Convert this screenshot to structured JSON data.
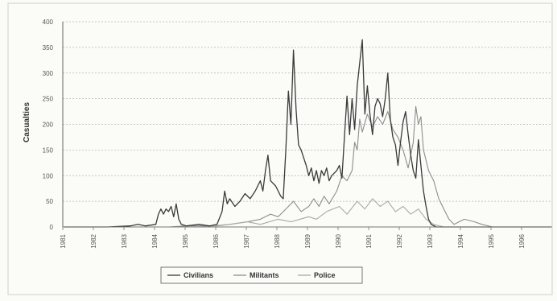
{
  "chart_data": {
    "type": "line",
    "title": "",
    "xlabel": "",
    "ylabel": "Casualties",
    "ylim": [
      0,
      400
    ],
    "y_ticks": [
      "0",
      "50",
      "100",
      "150",
      "200",
      "250",
      "300",
      "350",
      "400"
    ],
    "x_ticks": [
      "1981",
      "1982",
      "1983",
      "1984",
      "1985",
      "1986",
      "1987",
      "1988",
      "1989",
      "1990",
      "1991",
      "1992",
      "1993",
      "1994",
      "1995",
      "1996"
    ],
    "grid": "horizontal",
    "legend_placement": "bottom-center",
    "x_domain": [
      "1981-01",
      "1996-12"
    ],
    "series": [
      {
        "name": "Civilians",
        "color": "#3a3a3a",
        "points": [
          [
            "1981-01",
            0
          ],
          [
            "1982-06",
            0
          ],
          [
            "1983-03",
            2
          ],
          [
            "1983-06",
            5
          ],
          [
            "1983-09",
            2
          ],
          [
            "1984-01",
            5
          ],
          [
            "1984-02",
            25
          ],
          [
            "1984-03",
            35
          ],
          [
            "1984-04",
            25
          ],
          [
            "1984-05",
            35
          ],
          [
            "1984-06",
            30
          ],
          [
            "1984-07",
            40
          ],
          [
            "1984-08",
            20
          ],
          [
            "1984-09",
            45
          ],
          [
            "1984-10",
            15
          ],
          [
            "1984-11",
            5
          ],
          [
            "1985-01",
            2
          ],
          [
            "1985-06",
            5
          ],
          [
            "1985-10",
            2
          ],
          [
            "1986-01",
            5
          ],
          [
            "1986-03",
            30
          ],
          [
            "1986-04",
            70
          ],
          [
            "1986-05",
            45
          ],
          [
            "1986-06",
            55
          ],
          [
            "1986-08",
            40
          ],
          [
            "1986-10",
            50
          ],
          [
            "1986-12",
            65
          ],
          [
            "1987-02",
            55
          ],
          [
            "1987-04",
            70
          ],
          [
            "1987-06",
            90
          ],
          [
            "1987-07",
            70
          ],
          [
            "1987-08",
            110
          ],
          [
            "1987-09",
            140
          ],
          [
            "1987-10",
            90
          ],
          [
            "1987-12",
            80
          ],
          [
            "1988-02",
            60
          ],
          [
            "1988-03",
            55
          ],
          [
            "1988-04",
            150
          ],
          [
            "1988-05",
            265
          ],
          [
            "1988-06",
            200
          ],
          [
            "1988-07",
            345
          ],
          [
            "1988-08",
            230
          ],
          [
            "1988-09",
            160
          ],
          [
            "1988-10",
            150
          ],
          [
            "1988-12",
            120
          ],
          [
            "1989-01",
            100
          ],
          [
            "1989-02",
            115
          ],
          [
            "1989-03",
            90
          ],
          [
            "1989-04",
            110
          ],
          [
            "1989-05",
            85
          ],
          [
            "1989-06",
            110
          ],
          [
            "1989-07",
            100
          ],
          [
            "1989-08",
            115
          ],
          [
            "1989-09",
            90
          ],
          [
            "1989-10",
            100
          ],
          [
            "1989-12",
            110
          ],
          [
            "1990-01",
            120
          ],
          [
            "1990-02",
            95
          ],
          [
            "1990-03",
            175
          ],
          [
            "1990-04",
            255
          ],
          [
            "1990-05",
            180
          ],
          [
            "1990-06",
            250
          ],
          [
            "1990-07",
            190
          ],
          [
            "1990-08",
            275
          ],
          [
            "1990-09",
            320
          ],
          [
            "1990-10",
            365
          ],
          [
            "1990-11",
            220
          ],
          [
            "1990-12",
            275
          ],
          [
            "1991-01",
            220
          ],
          [
            "1991-02",
            180
          ],
          [
            "1991-03",
            235
          ],
          [
            "1991-04",
            250
          ],
          [
            "1991-05",
            240
          ],
          [
            "1991-06",
            215
          ],
          [
            "1991-07",
            250
          ],
          [
            "1991-08",
            300
          ],
          [
            "1991-09",
            210
          ],
          [
            "1991-10",
            175
          ],
          [
            "1991-11",
            160
          ],
          [
            "1991-12",
            120
          ],
          [
            "1992-01",
            165
          ],
          [
            "1992-02",
            205
          ],
          [
            "1992-03",
            225
          ],
          [
            "1992-04",
            180
          ],
          [
            "1992-05",
            140
          ],
          [
            "1992-06",
            110
          ],
          [
            "1992-07",
            95
          ],
          [
            "1992-08",
            170
          ],
          [
            "1992-09",
            120
          ],
          [
            "1992-10",
            70
          ],
          [
            "1992-11",
            40
          ],
          [
            "1992-12",
            15
          ],
          [
            "1993-01",
            5
          ],
          [
            "1993-03",
            0
          ],
          [
            "1996-12",
            0
          ]
        ]
      },
      {
        "name": "Militants",
        "color": "#8d8d8d",
        "points": [
          [
            "1981-01",
            0
          ],
          [
            "1984-06",
            0
          ],
          [
            "1985-01",
            2
          ],
          [
            "1986-01",
            2
          ],
          [
            "1986-06",
            5
          ],
          [
            "1987-01",
            10
          ],
          [
            "1987-06",
            15
          ],
          [
            "1987-10",
            25
          ],
          [
            "1988-01",
            20
          ],
          [
            "1988-04",
            35
          ],
          [
            "1988-07",
            50
          ],
          [
            "1988-10",
            30
          ],
          [
            "1989-01",
            40
          ],
          [
            "1989-03",
            55
          ],
          [
            "1989-05",
            40
          ],
          [
            "1989-07",
            60
          ],
          [
            "1989-09",
            45
          ],
          [
            "1989-12",
            70
          ],
          [
            "1990-02",
            100
          ],
          [
            "1990-04",
            90
          ],
          [
            "1990-06",
            110
          ],
          [
            "1990-07",
            165
          ],
          [
            "1990-08",
            150
          ],
          [
            "1990-09",
            210
          ],
          [
            "1990-10",
            185
          ],
          [
            "1990-12",
            220
          ],
          [
            "1991-02",
            195
          ],
          [
            "1991-04",
            215
          ],
          [
            "1991-06",
            200
          ],
          [
            "1991-08",
            225
          ],
          [
            "1991-10",
            190
          ],
          [
            "1991-12",
            175
          ],
          [
            "1992-02",
            150
          ],
          [
            "1992-04",
            115
          ],
          [
            "1992-06",
            165
          ],
          [
            "1992-07",
            235
          ],
          [
            "1992-08",
            200
          ],
          [
            "1992-09",
            215
          ],
          [
            "1992-10",
            150
          ],
          [
            "1992-11",
            130
          ],
          [
            "1992-12",
            110
          ],
          [
            "1993-02",
            90
          ],
          [
            "1993-04",
            55
          ],
          [
            "1993-06",
            35
          ],
          [
            "1993-08",
            15
          ],
          [
            "1993-10",
            5
          ],
          [
            "1994-02",
            15
          ],
          [
            "1994-06",
            10
          ],
          [
            "1994-09",
            5
          ],
          [
            "1995-01",
            0
          ],
          [
            "1996-12",
            0
          ]
        ]
      },
      {
        "name": "Police",
        "color": "#a8a8a8",
        "points": [
          [
            "1981-01",
            0
          ],
          [
            "1985-06",
            0
          ],
          [
            "1986-06",
            5
          ],
          [
            "1987-01",
            10
          ],
          [
            "1987-06",
            5
          ],
          [
            "1988-01",
            15
          ],
          [
            "1988-06",
            10
          ],
          [
            "1989-01",
            20
          ],
          [
            "1989-04",
            15
          ],
          [
            "1989-08",
            30
          ],
          [
            "1990-01",
            40
          ],
          [
            "1990-04",
            25
          ],
          [
            "1990-08",
            50
          ],
          [
            "1990-11",
            35
          ],
          [
            "1991-02",
            55
          ],
          [
            "1991-05",
            40
          ],
          [
            "1991-08",
            50
          ],
          [
            "1991-11",
            30
          ],
          [
            "1992-02",
            40
          ],
          [
            "1992-05",
            25
          ],
          [
            "1992-08",
            35
          ],
          [
            "1992-11",
            15
          ],
          [
            "1993-02",
            5
          ],
          [
            "1993-06",
            0
          ],
          [
            "1996-12",
            0
          ]
        ]
      }
    ]
  }
}
